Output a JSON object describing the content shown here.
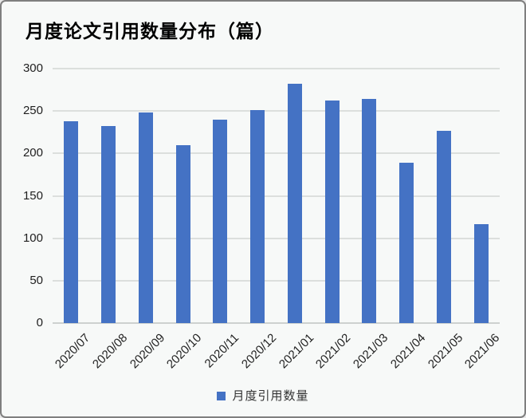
{
  "window": {
    "background_color": "#f7f9f8",
    "border_color": "#7f7f7f"
  },
  "chart_data": {
    "type": "bar",
    "title": "月度论文引用数量分布（篇）",
    "categories": [
      "2020/07",
      "2020/08",
      "2020/09",
      "2020/10",
      "2020/11",
      "2020/12",
      "2021/01",
      "2021/02",
      "2021/03",
      "2021/04",
      "2021/05",
      "2021/06"
    ],
    "values": [
      238,
      232,
      248,
      210,
      240,
      251,
      282,
      262,
      264,
      189,
      227,
      117
    ],
    "series_name": "月度引用数量",
    "xlabel": "",
    "ylabel": "",
    "ylim": [
      0,
      300
    ],
    "yticks": [
      0,
      50,
      100,
      150,
      200,
      250,
      300
    ],
    "bar_color": "#4472c4",
    "gridline_color": "#dcdfdd",
    "grid": true,
    "legend_position": "bottom",
    "x_tick_rotation_deg": 45
  }
}
